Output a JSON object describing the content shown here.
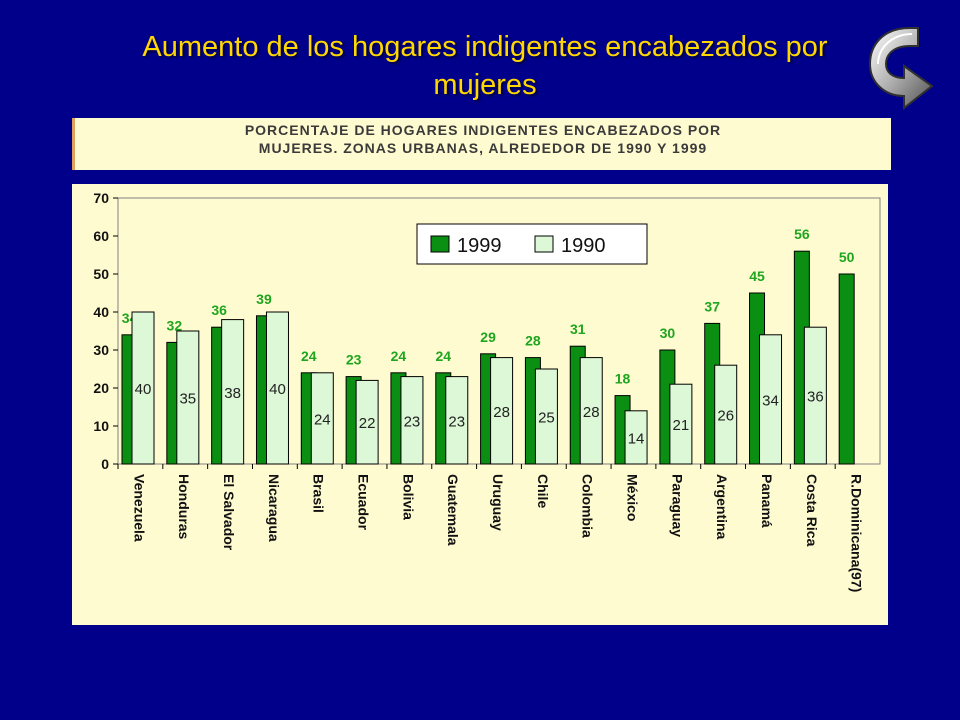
{
  "slide": {
    "title_line1": "Aumento de los hogares indigentes encabezados por",
    "title_line2": "mujeres"
  },
  "chart_banner": {
    "line1": "PORCENTAJE DE HOGARES INDIGENTES ENCABEZADOS POR",
    "line2": "MUJERES.  ZONAS URBANAS, ALREDEDOR DE 1990 Y 1999"
  },
  "colors": {
    "background": "#00008b",
    "title": "#ffd700",
    "panel": "#fffbd0",
    "bar_1999": "#0b8f12",
    "bar_1990": "#dcf8d6",
    "label_1999": "#1fa51f"
  },
  "chart_data": {
    "type": "bar",
    "title": "PORCENTAJE DE HOGARES INDIGENTES ENCABEZADOS POR MUJERES.  ZONAS URBANAS, ALREDEDOR DE 1990 Y 1999",
    "categories": [
      "Venezuela",
      "Honduras",
      "El Salvador",
      "Nicaragua",
      "Brasil",
      "Ecuador",
      "Bolivia",
      "Guatemala",
      "Uruguay",
      "Chile",
      "Colombia",
      "México",
      "Paraguay",
      "Argentina",
      "Panamá",
      "Costa Rica",
      "R.Dominicana(97)"
    ],
    "series": [
      {
        "name": "1999",
        "values": [
          34,
          32,
          36,
          39,
          24,
          23,
          24,
          24,
          29,
          28,
          31,
          18,
          30,
          37,
          45,
          56,
          50
        ]
      },
      {
        "name": "1990",
        "values": [
          40,
          35,
          38,
          40,
          24,
          22,
          23,
          23,
          28,
          25,
          28,
          14,
          21,
          26,
          34,
          36,
          null
        ]
      }
    ],
    "ylim": [
      0,
      70
    ],
    "yticks": [
      0,
      10,
      20,
      30,
      40,
      50,
      60,
      70
    ],
    "legend": "top-center",
    "grid": false
  }
}
